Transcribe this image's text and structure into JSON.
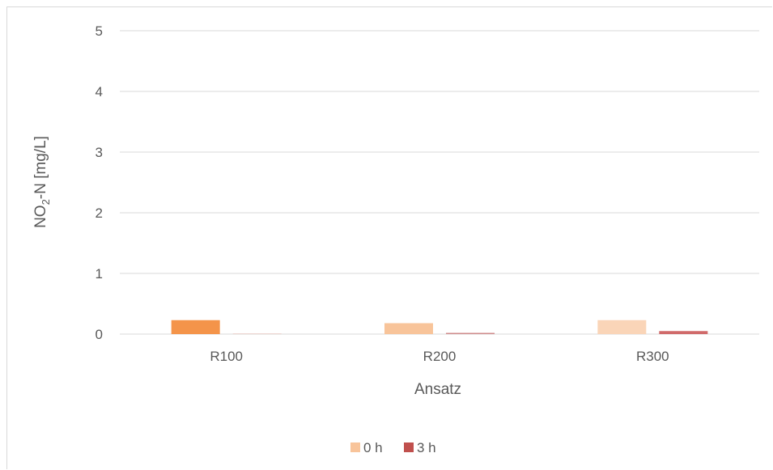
{
  "chart_data": {
    "type": "bar",
    "categories": [
      "R100",
      "R200",
      "R300"
    ],
    "series": [
      {
        "name": "0 h",
        "values": [
          0.23,
          0.18,
          0.23
        ],
        "colors": [
          "#f4944a",
          "#f8c49a",
          "#fad5b8"
        ]
      },
      {
        "name": "3 h",
        "values": [
          0.01,
          0.02,
          0.05
        ],
        "colors": [
          "#e8c8c2",
          "#cf8c8c",
          "#d06a6a"
        ]
      }
    ],
    "legend_colors": [
      "#f8c49a",
      "#c0504d"
    ],
    "xlabel": "Ansatz",
    "ylabel_main": "NO",
    "ylabel_sub": "2",
    "ylabel_rest": "-N [mg/L]",
    "ylim": [
      0,
      5
    ],
    "yticks": [
      "0",
      "1",
      "2",
      "3",
      "4",
      "5"
    ],
    "grid": true,
    "gridColor": "#d9d9d9",
    "legend_position": "bottom"
  }
}
